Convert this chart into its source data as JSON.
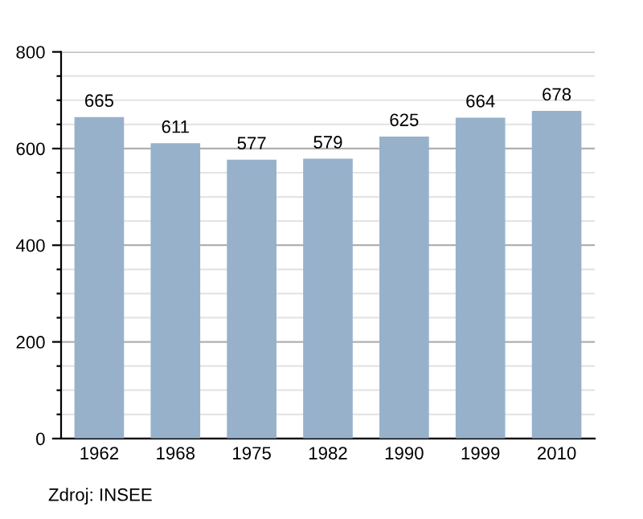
{
  "chart_data": {
    "type": "bar",
    "categories": [
      "1962",
      "1968",
      "1975",
      "1982",
      "1990",
      "1999",
      "2010"
    ],
    "values": [
      665,
      611,
      577,
      579,
      625,
      664,
      678
    ],
    "color": "#97b1cb",
    "data_labels": true,
    "ylim": [
      0,
      800
    ],
    "yticks": [
      0,
      {
        "value": 50,
        "label": null
      },
      {
        "value": 100,
        "label": null
      },
      {
        "value": 150,
        "label": null
      },
      200,
      {
        "value": 250,
        "label": null
      },
      {
        "value": 300,
        "label": null
      },
      {
        "value": 350,
        "label": null
      },
      400,
      {
        "value": 450,
        "label": null
      },
      {
        "value": 500,
        "label": null
      },
      {
        "value": 550,
        "label": null
      },
      600,
      {
        "value": 650,
        "label": null
      },
      {
        "value": 700,
        "label": null
      },
      {
        "value": 750,
        "label": null
      },
      800
    ],
    "grid": "y",
    "annotations": [
      "Zdroj: INSEE"
    ]
  }
}
